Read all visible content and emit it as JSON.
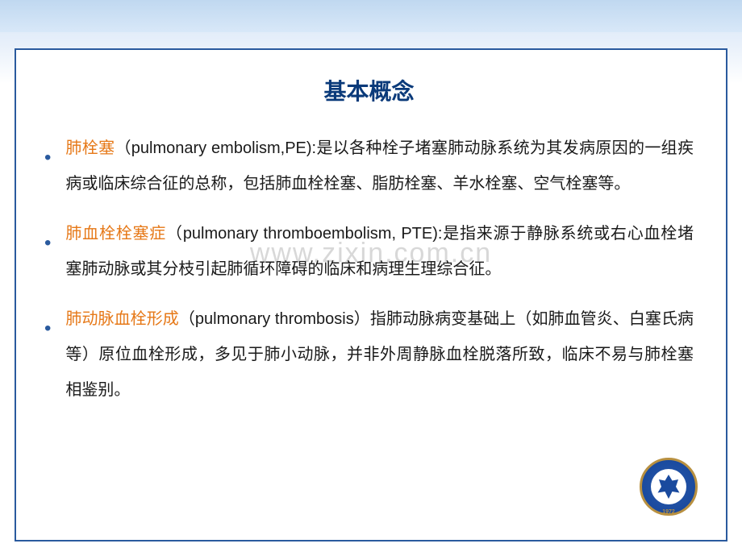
{
  "slide": {
    "title": "基本概念",
    "watermark": "www.zixin.com.cn",
    "bullets": [
      {
        "term": "肺栓塞",
        "paren_open": "（",
        "english": "pulmonary embolism,PE)",
        "colon": ":",
        "body": "是以各种栓子堵塞肺动脉系统为其发病原因的一组疾病或临床综合征的总称，包括肺血栓栓塞、脂肪栓塞、羊水栓塞、空气栓塞等。"
      },
      {
        "term": "肺血栓栓塞症",
        "paren_open": "（",
        "english": "pulmonary thromboembolism, PTE)",
        "colon": ":",
        "body": "是指来源于静脉系统或右心血栓堵塞肺动脉或其分枝引起肺循环障碍的临床和病理生理综合征。"
      },
      {
        "term": "肺动脉血栓形成",
        "paren_open": "（",
        "english": "pulmonary thrombosis",
        "paren_close": "）",
        "body": "指肺动脉病变基础上（如肺血管炎、白塞氏病等）原位血栓形成，多见于肺小动脉，并非外周静脉血栓脱落所致，临床不易与肺栓塞相鉴别。"
      }
    ],
    "logo": {
      "year": "1972"
    }
  },
  "styling": {
    "background_gradient": [
      "#d4e5f7",
      "#e8f0fa",
      "#ffffff"
    ],
    "border_color": "#2a5a9e",
    "title_color": "#0a3a7a",
    "term_color": "#e67817",
    "body_color": "#1a1a1a",
    "bullet_color": "#2a5a9e",
    "title_fontsize": 28,
    "body_fontsize": 20,
    "line_height": 2.2,
    "logo_colors": {
      "outer": "#1a4a9e",
      "border": "#b89040",
      "inner": "#ffffff"
    }
  }
}
